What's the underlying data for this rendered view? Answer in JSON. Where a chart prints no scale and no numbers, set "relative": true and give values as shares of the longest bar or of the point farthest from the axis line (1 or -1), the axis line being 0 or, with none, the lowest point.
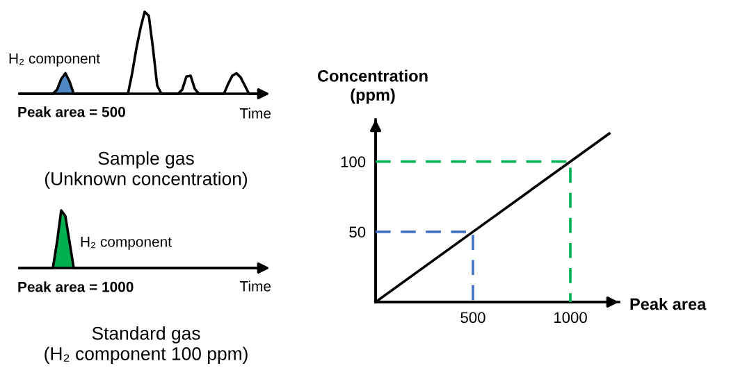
{
  "chart_data": [
    {
      "type": "line",
      "relative": true,
      "title": "Sample gas\n(Unknown concentration)",
      "xlabel": "Time",
      "annotations": [
        "H₂ component",
        "Peak area = 500"
      ],
      "categories": [
        null,
        null,
        null,
        null,
        null,
        null,
        null,
        null,
        null,
        null,
        null,
        null,
        null,
        null,
        null,
        null,
        null,
        null,
        null,
        null,
        null,
        null,
        null,
        null,
        null,
        null,
        null,
        null,
        null,
        null,
        null,
        null,
        null,
        null,
        null,
        null,
        null,
        null,
        null,
        null,
        null,
        null,
        null,
        null,
        null,
        null,
        null,
        null,
        null,
        null,
        null,
        null,
        null,
        null,
        null,
        null,
        null,
        null,
        null,
        null
      ],
      "series": [
        {
          "type": "area",
          "color": "#4f86c4",
          "values": [
            null,
            null,
            null,
            null,
            null,
            null,
            null,
            null,
            0,
            0.05,
            0.18,
            0.25,
            0.15,
            0,
            null,
            null,
            null,
            null,
            null,
            null,
            null,
            null,
            null,
            null,
            null,
            null,
            null,
            null,
            null,
            null,
            null,
            null,
            null,
            null,
            null,
            null,
            null,
            null,
            null,
            null,
            null,
            null,
            null,
            null,
            null,
            null,
            null,
            null,
            null,
            null,
            null,
            null,
            null,
            null,
            null,
            null,
            null,
            null,
            null,
            null
          ]
        },
        {
          "type": "line",
          "color": "#000000",
          "values": [
            0,
            0,
            0,
            0,
            0,
            0,
            0,
            0,
            0,
            0.05,
            0.18,
            0.25,
            0.15,
            0,
            0,
            0,
            0,
            0,
            0,
            0,
            0,
            0,
            0,
            0,
            0,
            0,
            0,
            0.25,
            0.55,
            0.8,
            1,
            0.95,
            0.55,
            0.1,
            0,
            0,
            0,
            0,
            0,
            0.05,
            0.21,
            0.22,
            0.06,
            0,
            0,
            0,
            0,
            0,
            0,
            0,
            0.12,
            0.22,
            0.25,
            0.2,
            0.1,
            0,
            0,
            0,
            0,
            0
          ]
        }
      ]
    },
    {
      "type": "line",
      "relative": true,
      "title": "Standard gas\n(H₂ component 100 ppm)",
      "xlabel": "Time",
      "annotations": [
        "H₂ component",
        "Peak area = 1000"
      ],
      "categories": [
        null,
        null,
        null,
        null,
        null,
        null,
        null,
        null,
        null,
        null,
        null,
        null,
        null,
        null,
        null,
        null,
        null,
        null,
        null,
        null,
        null,
        null,
        null,
        null,
        null,
        null,
        null,
        null,
        null,
        null,
        null,
        null,
        null,
        null,
        null,
        null,
        null,
        null,
        null,
        null,
        null,
        null,
        null,
        null,
        null,
        null,
        null,
        null,
        null,
        null,
        null,
        null,
        null,
        null,
        null,
        null,
        null,
        null,
        null,
        null
      ],
      "series": [
        {
          "type": "area",
          "color": "#00b050",
          "values": [
            null,
            null,
            null,
            null,
            null,
            null,
            null,
            null,
            0,
            0.45,
            1,
            0.9,
            0.45,
            0,
            null,
            null,
            null,
            null,
            null,
            null,
            null,
            null,
            null,
            null,
            null,
            null,
            null,
            null,
            null,
            null,
            null,
            null,
            null,
            null,
            null,
            null,
            null,
            null,
            null,
            null,
            null,
            null,
            null,
            null,
            null,
            null,
            null,
            null,
            null,
            null,
            null,
            null,
            null,
            null,
            null,
            null,
            null,
            null,
            null,
            null
          ]
        },
        {
          "type": "line",
          "color": "#000000",
          "values": [
            0,
            0,
            0,
            0,
            0,
            0,
            0,
            0,
            0,
            0.45,
            1,
            0.9,
            0.45,
            0,
            0,
            0,
            0,
            0,
            0,
            0,
            0,
            0,
            0,
            0,
            0,
            0,
            0,
            0,
            0,
            0,
            0,
            0,
            0,
            0,
            0,
            0,
            0,
            0,
            0,
            0,
            0,
            0,
            0,
            0,
            0,
            0,
            0,
            0,
            0,
            0,
            0,
            0,
            0,
            0,
            0,
            0,
            0,
            0,
            0,
            0
          ]
        }
      ]
    },
    {
      "type": "line",
      "xlabel": "Peak area",
      "ylabel": "Concentration\n(ppm)",
      "xlim": [
        0,
        1250
      ],
      "ylim": [
        0,
        130
      ],
      "xticks": [
        500,
        1000
      ],
      "yticks": [
        50,
        100
      ],
      "grid": false,
      "series": [
        {
          "color": "#4472c4",
          "line_style": "dashed",
          "x": [
            0,
            500,
            500
          ],
          "values": [
            50,
            50,
            0
          ]
        },
        {
          "color": "#00b050",
          "line_style": "dashed",
          "x": [
            0,
            1000,
            1000
          ],
          "values": [
            100,
            100,
            0
          ]
        },
        {
          "color": "#000000",
          "line_style": "solid",
          "x": [
            0,
            500,
            1000,
            1200
          ],
          "values": [
            0,
            50,
            100,
            120
          ]
        }
      ]
    }
  ]
}
